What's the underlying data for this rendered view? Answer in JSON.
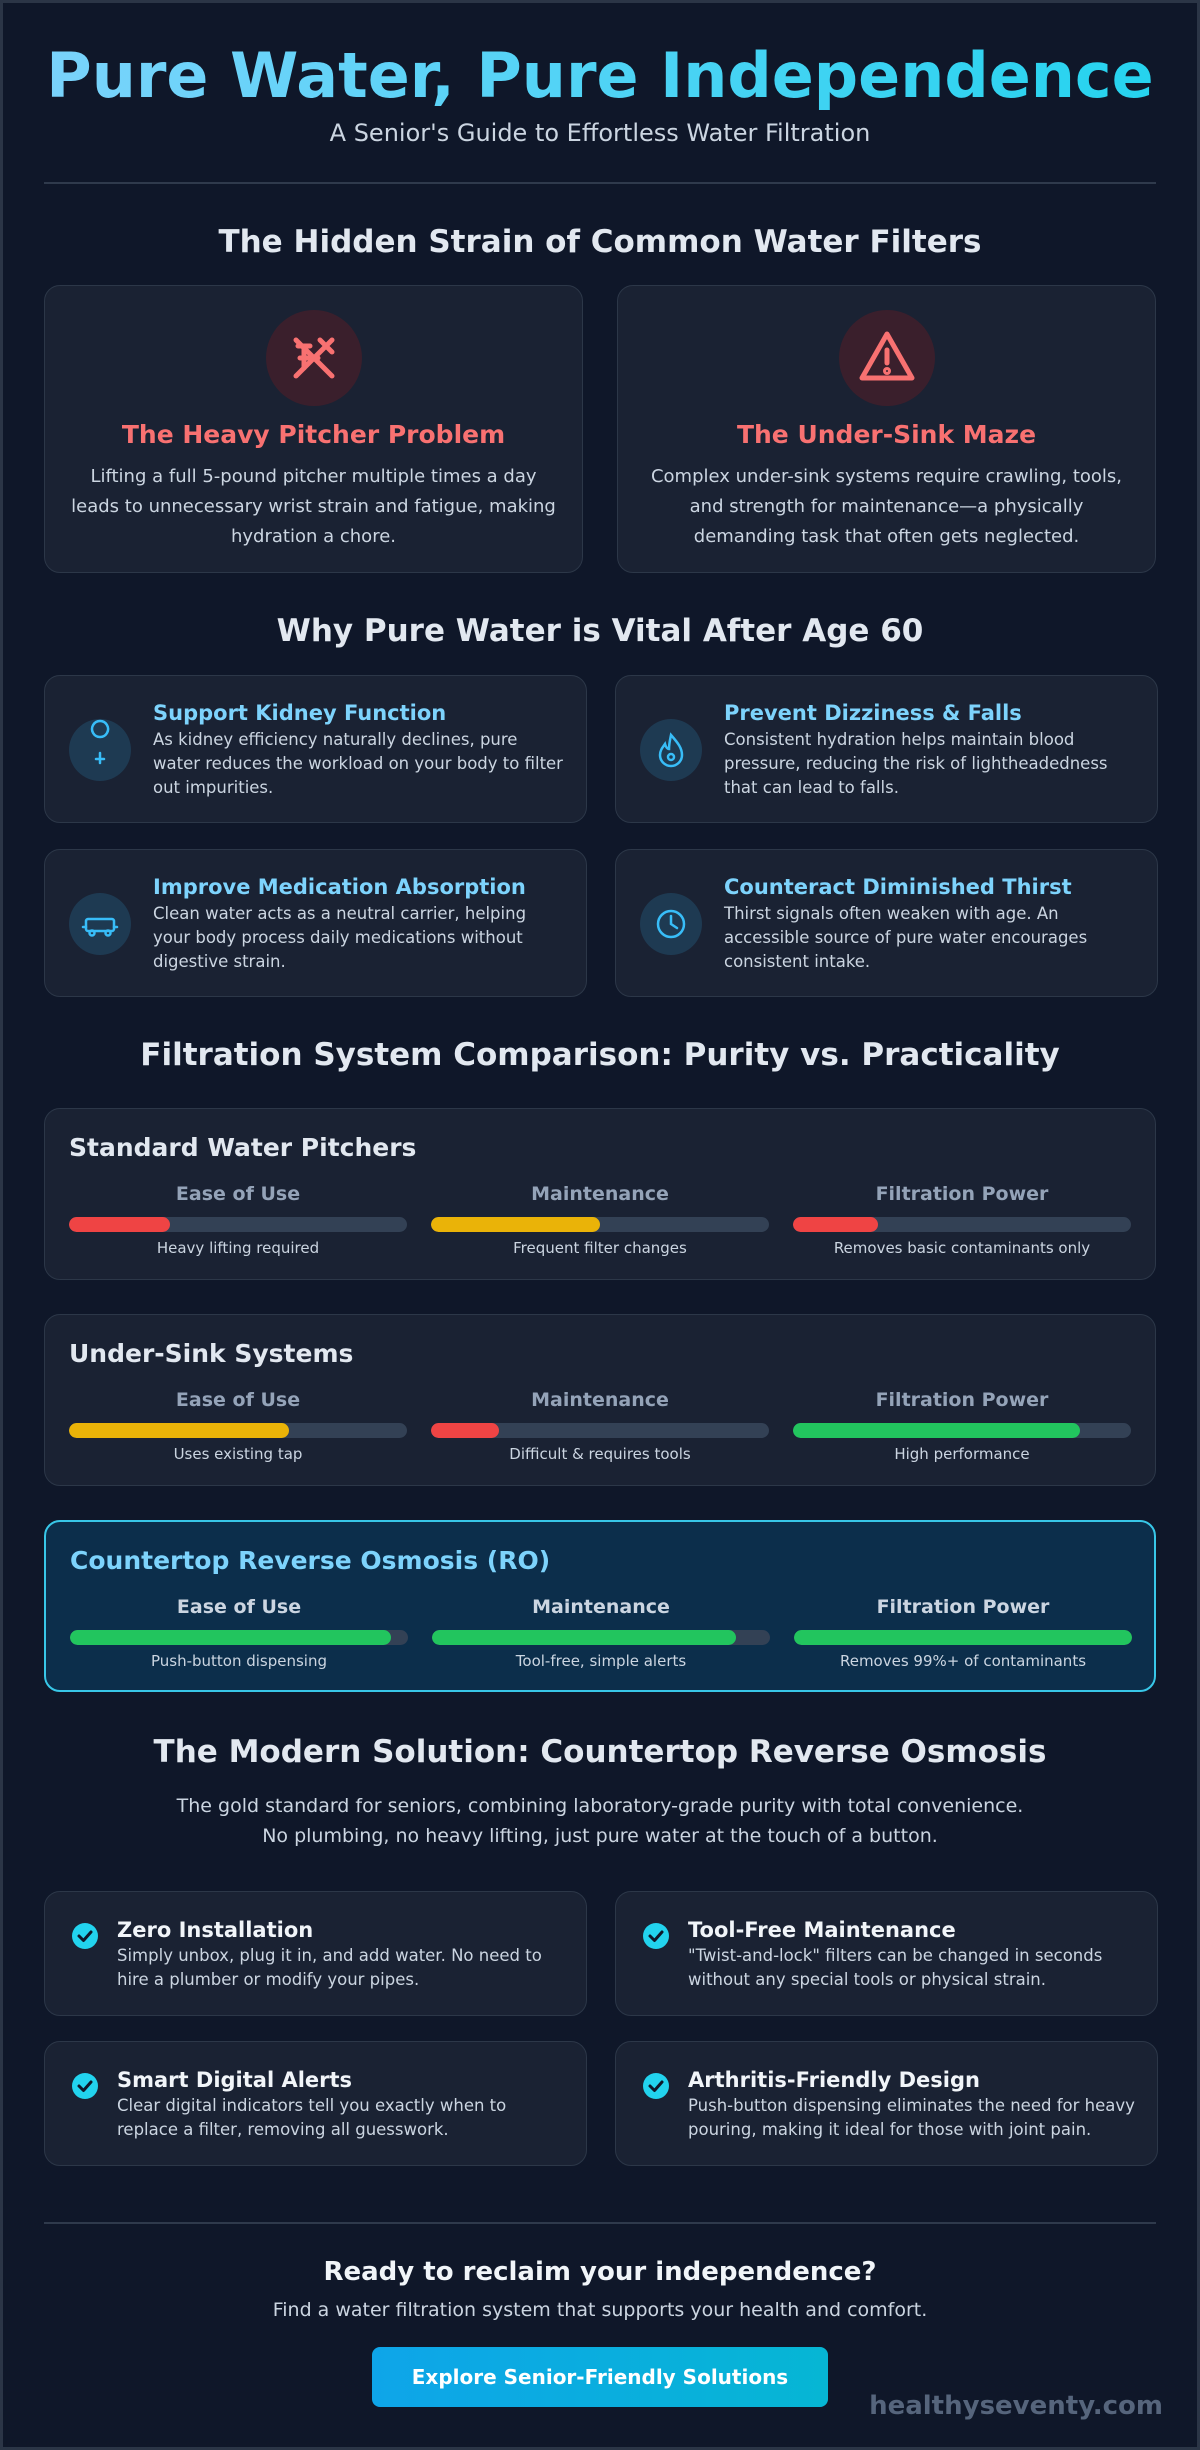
{
  "header": {
    "title": "Pure Water, Pure Independence",
    "subtitle": "A Senior's Guide to Effortless Water Filtration"
  },
  "problems": {
    "heading": "The Hidden Strain of Common Water Filters",
    "cards": [
      {
        "title": "The Heavy Pitcher Problem",
        "text": "Lifting a full 5-pound pitcher multiple times a day leads to unnecessary wrist strain and fatigue, making hydration a chore."
      },
      {
        "title": "The Under-Sink Maze",
        "text": "Complex under-sink systems require crawling, tools, and strength for maintenance—a physically demanding task that often gets neglected."
      }
    ]
  },
  "benefits": {
    "heading": "Why Pure Water is Vital After Age 60",
    "cards": [
      {
        "title": "Support Kidney Function",
        "text": "As kidney efficiency naturally declines, pure water reduces the workload on your body to filter out impurities."
      },
      {
        "title": "Prevent Dizziness & Falls",
        "text": "Consistent hydration helps maintain blood pressure, reducing the risk of lightheadedness that can lead to falls."
      },
      {
        "title": "Improve Medication Absorption",
        "text": "Clean water acts as a neutral carrier, helping your body process daily medications without digestive strain."
      },
      {
        "title": "Counteract Diminished Thirst",
        "text": "Thirst signals often weaken with age. An accessible source of pure water encourages consistent intake."
      }
    ]
  },
  "comparison": {
    "heading": "Filtration System Comparison: Purity vs. Practicality",
    "bar_max": 100,
    "systems": [
      {
        "name": "Standard Water Pitchers",
        "highlighted": false,
        "metrics": [
          {
            "label": "Ease of Use",
            "value": 30,
            "color": "#ef4444",
            "caption": "Heavy lifting required"
          },
          {
            "label": "Maintenance",
            "value": 50,
            "color": "#eab308",
            "caption": "Frequent filter changes"
          },
          {
            "label": "Filtration Power",
            "value": 25,
            "color": "#ef4444",
            "caption": "Removes basic contaminants only"
          }
        ]
      },
      {
        "name": "Under-Sink Systems",
        "highlighted": false,
        "metrics": [
          {
            "label": "Ease of Use",
            "value": 65,
            "color": "#eab308",
            "caption": "Uses existing tap"
          },
          {
            "label": "Maintenance",
            "value": 20,
            "color": "#ef4444",
            "caption": "Difficult & requires tools"
          },
          {
            "label": "Filtration Power",
            "value": 85,
            "color": "#22c55e",
            "caption": "High performance"
          }
        ]
      },
      {
        "name": "Countertop Reverse Osmosis (RO)",
        "highlighted": true,
        "metrics": [
          {
            "label": "Ease of Use",
            "value": 95,
            "color": "#22c55e",
            "caption": "Push-button dispensing"
          },
          {
            "label": "Maintenance",
            "value": 90,
            "color": "#22c55e",
            "caption": "Tool-free, simple alerts"
          },
          {
            "label": "Filtration Power",
            "value": 100,
            "color": "#22c55e",
            "caption": "Removes 99%+ of contaminants"
          }
        ]
      }
    ]
  },
  "solution": {
    "heading": "The Modern Solution: Countertop Reverse Osmosis",
    "intro": "The gold standard for seniors, combining laboratory-grade purity with total convenience. No plumbing, no heavy lifting, just pure water at the touch of a button.",
    "features": [
      {
        "title": "Zero Installation",
        "text": "Simply unbox, plug it in, and add water. No need to hire a plumber or modify your pipes."
      },
      {
        "title": "Tool-Free Maintenance",
        "text": "\"Twist-and-lock\" filters can be changed in seconds without any special tools or physical strain."
      },
      {
        "title": "Smart Digital Alerts",
        "text": "Clear digital indicators tell you exactly when to replace a filter, removing all guesswork."
      },
      {
        "title": "Arthritis-Friendly Design",
        "text": "Push-button dispensing eliminates the need for heavy pouring, making it ideal for those with joint pain."
      }
    ]
  },
  "cta": {
    "heading": "Ready to reclaim your independence?",
    "text": "Find a water filtration system that supports your health and comfort.",
    "button": "Explore Senior-Friendly Solutions"
  },
  "footer": {
    "brand": "healthyseventy.com"
  }
}
